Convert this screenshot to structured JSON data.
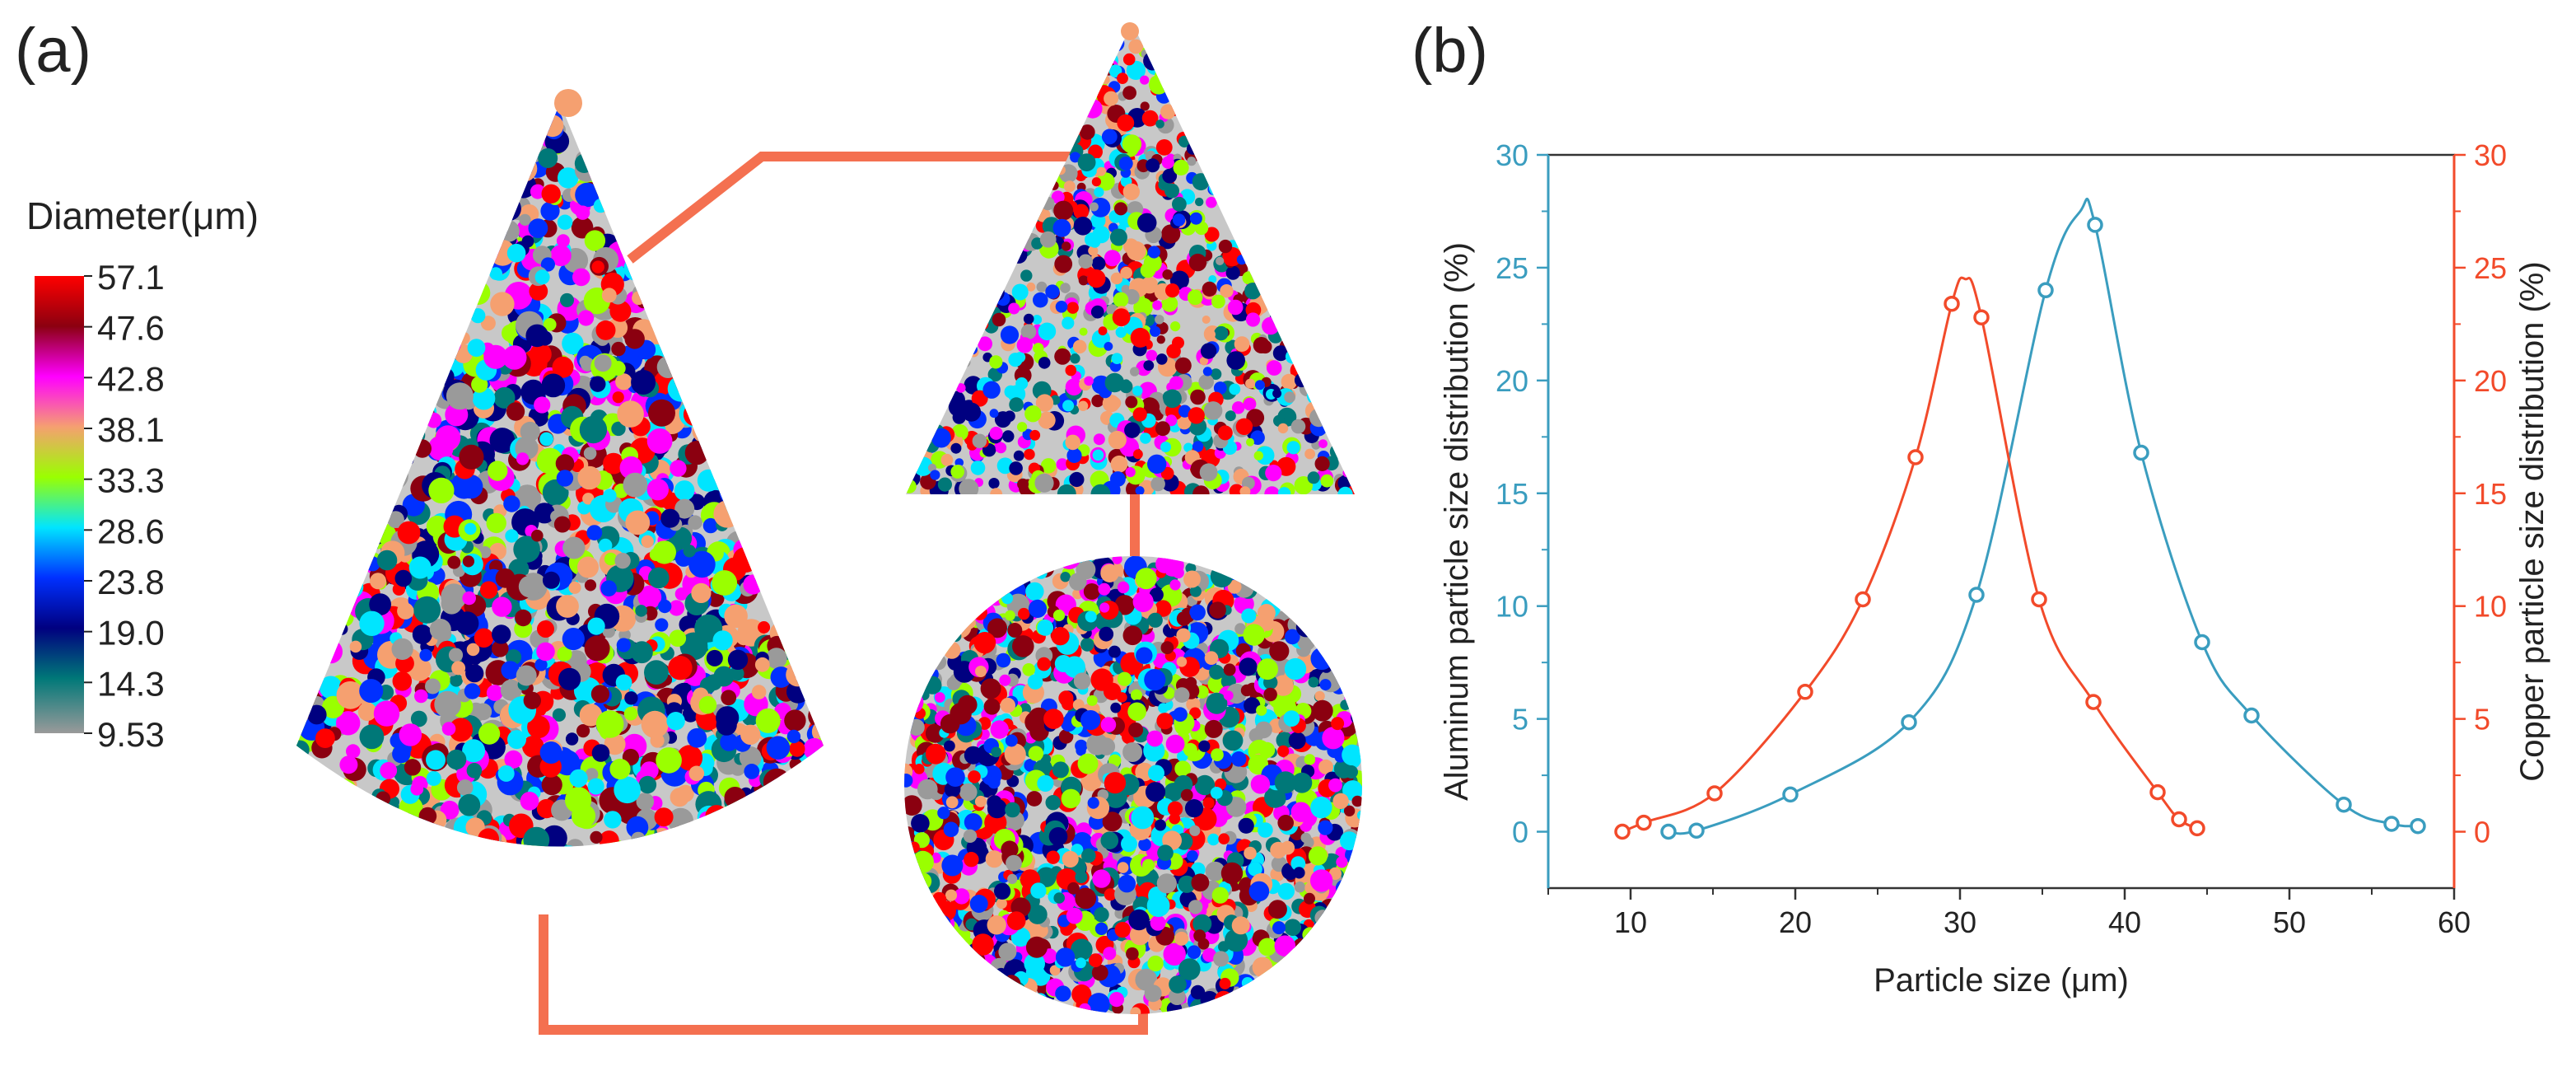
{
  "panel_a": {
    "label": "(a)",
    "legend_title": "Diameter(μm)",
    "legend_ticks": [
      "57.1",
      "47.6",
      "42.8",
      "38.1",
      "33.3",
      "28.6",
      "23.8",
      "19.0",
      "14.3",
      "9.53"
    ],
    "legend_colors": [
      "#ff0000",
      "#8b0010",
      "#ff00ff",
      "#f5a070",
      "#9aff00",
      "#00e5ff",
      "#0030ff",
      "#000080",
      "#007878",
      "#9a9a9a"
    ]
  },
  "panel_b": {
    "label": "(b)"
  },
  "chart_data": {
    "type": "line",
    "xlabel": "Particle size (μm)",
    "ylabel_left": "Aluminum particle size distribution (%)",
    "ylabel_right": "Copper particle size distribution (%)",
    "xlim": [
      5,
      60
    ],
    "ylim": [
      -2.5,
      30
    ],
    "ylim_right": [
      -2.5,
      30
    ],
    "x_ticks": [
      10,
      20,
      30,
      40,
      50,
      60
    ],
    "y_ticks": [
      0,
      5,
      10,
      15,
      20,
      25,
      30
    ],
    "colors": {
      "aluminum": "#3a9dbf",
      "copper": "#f24a2a"
    },
    "series": [
      {
        "key": "aluminum",
        "axis": "left",
        "color": "#3a9dbf",
        "x": [
          12.3,
          14.0,
          19.7,
          26.9,
          31.0,
          35.2,
          37.3,
          38.2,
          41.0,
          44.7,
          47.7,
          53.3,
          56.2,
          57.8
        ],
        "y": [
          0.0,
          0.05,
          1.65,
          4.85,
          10.5,
          24.0,
          27.5,
          26.9,
          16.8,
          8.4,
          5.15,
          1.2,
          0.35,
          0.25
        ],
        "markers": [
          true,
          true,
          true,
          true,
          true,
          true,
          false,
          true,
          true,
          true,
          true,
          true,
          true,
          true
        ]
      },
      {
        "key": "copper",
        "axis": "right",
        "color": "#f24a2a",
        "x": [
          9.5,
          10.8,
          15.1,
          20.6,
          24.1,
          27.3,
          29.5,
          30.3,
          31.3,
          34.8,
          38.1,
          42.0,
          43.3,
          44.4
        ],
        "y": [
          0.0,
          0.4,
          1.7,
          6.2,
          10.3,
          16.6,
          23.4,
          24.5,
          22.8,
          10.3,
          5.75,
          1.75,
          0.55,
          0.15
        ],
        "markers": [
          true,
          true,
          true,
          true,
          true,
          true,
          true,
          false,
          true,
          true,
          true,
          true,
          true,
          true
        ]
      }
    ]
  }
}
